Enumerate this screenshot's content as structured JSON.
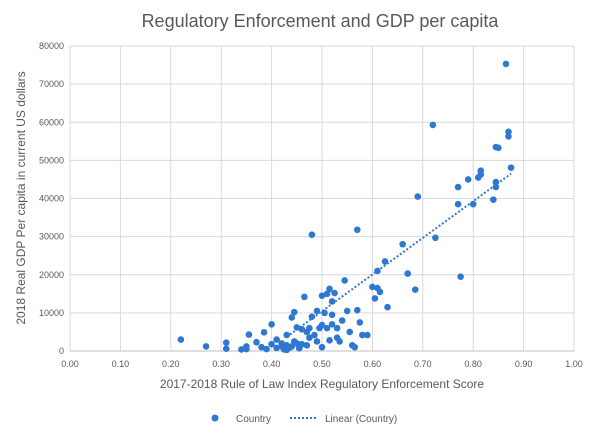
{
  "chart_data": {
    "type": "scatter",
    "title": "Regulatory Enforcement and GDP per capita",
    "xlabel": "2017-2018 Rule of Law Index Regulatory Enforcement Score",
    "ylabel": "2018 Real GDP Per capita in current US dollars",
    "xlim": [
      0,
      1
    ],
    "ylim": [
      0,
      80000
    ],
    "xticks": [
      "0.00",
      "0.10",
      "0.20",
      "0.30",
      "0.40",
      "0.50",
      "0.60",
      "0.70",
      "0.80",
      "0.90",
      "1.00"
    ],
    "yticks": [
      "0",
      "10000",
      "20000",
      "30000",
      "40000",
      "50000",
      "60000",
      "70000",
      "80000"
    ],
    "grid": true,
    "legend_position": "bottom",
    "colors": {
      "points": "#2e78d2",
      "trend": "#2e78d2",
      "grid": "#d9d9d9"
    },
    "series": [
      {
        "name": "Country",
        "points": [
          [
            0.22,
            3000
          ],
          [
            0.27,
            1200
          ],
          [
            0.31,
            2200
          ],
          [
            0.31,
            600
          ],
          [
            0.34,
            400
          ],
          [
            0.35,
            500
          ],
          [
            0.35,
            1200
          ],
          [
            0.355,
            4300
          ],
          [
            0.37,
            2300
          ],
          [
            0.38,
            1000
          ],
          [
            0.385,
            4900
          ],
          [
            0.39,
            500
          ],
          [
            0.4,
            7000
          ],
          [
            0.4,
            1800
          ],
          [
            0.41,
            800
          ],
          [
            0.41,
            3000
          ],
          [
            0.42,
            2000
          ],
          [
            0.42,
            1200
          ],
          [
            0.425,
            400
          ],
          [
            0.43,
            4200
          ],
          [
            0.43,
            1500
          ],
          [
            0.435,
            800
          ],
          [
            0.44,
            1200
          ],
          [
            0.44,
            8800
          ],
          [
            0.445,
            10200
          ],
          [
            0.45,
            6200
          ],
          [
            0.45,
            2000
          ],
          [
            0.455,
            1000
          ],
          [
            0.46,
            1800
          ],
          [
            0.46,
            5700
          ],
          [
            0.465,
            14200
          ],
          [
            0.47,
            5000
          ],
          [
            0.475,
            3500
          ],
          [
            0.475,
            6000
          ],
          [
            0.48,
            30500
          ],
          [
            0.48,
            9000
          ],
          [
            0.485,
            4200
          ],
          [
            0.49,
            10500
          ],
          [
            0.49,
            2500
          ],
          [
            0.495,
            6000
          ],
          [
            0.5,
            6800
          ],
          [
            0.5,
            14500
          ],
          [
            0.5,
            1000
          ],
          [
            0.505,
            10000
          ],
          [
            0.51,
            6000
          ],
          [
            0.51,
            15000
          ],
          [
            0.515,
            16300
          ],
          [
            0.52,
            13000
          ],
          [
            0.52,
            9500
          ],
          [
            0.52,
            7000
          ],
          [
            0.525,
            15200
          ],
          [
            0.53,
            6000
          ],
          [
            0.535,
            2500
          ],
          [
            0.54,
            8000
          ],
          [
            0.545,
            18500
          ],
          [
            0.55,
            10500
          ],
          [
            0.555,
            5000
          ],
          [
            0.56,
            1500
          ],
          [
            0.565,
            1000
          ],
          [
            0.57,
            31800
          ],
          [
            0.57,
            10700
          ],
          [
            0.575,
            7500
          ],
          [
            0.58,
            4200
          ],
          [
            0.59,
            4200
          ],
          [
            0.6,
            16800
          ],
          [
            0.605,
            13800
          ],
          [
            0.61,
            21000
          ],
          [
            0.61,
            16500
          ],
          [
            0.615,
            15500
          ],
          [
            0.625,
            23500
          ],
          [
            0.63,
            11500
          ],
          [
            0.66,
            28000
          ],
          [
            0.67,
            20300
          ],
          [
            0.685,
            16100
          ],
          [
            0.69,
            40500
          ],
          [
            0.72,
            59300
          ],
          [
            0.725,
            29700
          ],
          [
            0.77,
            38500
          ],
          [
            0.77,
            43000
          ],
          [
            0.775,
            19500
          ],
          [
            0.79,
            45000
          ],
          [
            0.8,
            38500
          ],
          [
            0.81,
            45500
          ],
          [
            0.815,
            46300
          ],
          [
            0.815,
            47300
          ],
          [
            0.84,
            39700
          ],
          [
            0.845,
            44300
          ],
          [
            0.845,
            43000
          ],
          [
            0.845,
            53500
          ],
          [
            0.85,
            53300
          ],
          [
            0.865,
            75300
          ],
          [
            0.87,
            57500
          ],
          [
            0.87,
            56300
          ],
          [
            0.875,
            48100
          ],
          [
            0.43,
            300
          ],
          [
            0.445,
            2500
          ],
          [
            0.455,
            700
          ],
          [
            0.47,
            1500
          ],
          [
            0.515,
            2800
          ],
          [
            0.53,
            3500
          ]
        ]
      },
      {
        "name": "Linear (Country)",
        "type": "trendline",
        "from": [
          0.43,
          3700
        ],
        "to": [
          0.875,
          46500
        ]
      }
    ]
  }
}
